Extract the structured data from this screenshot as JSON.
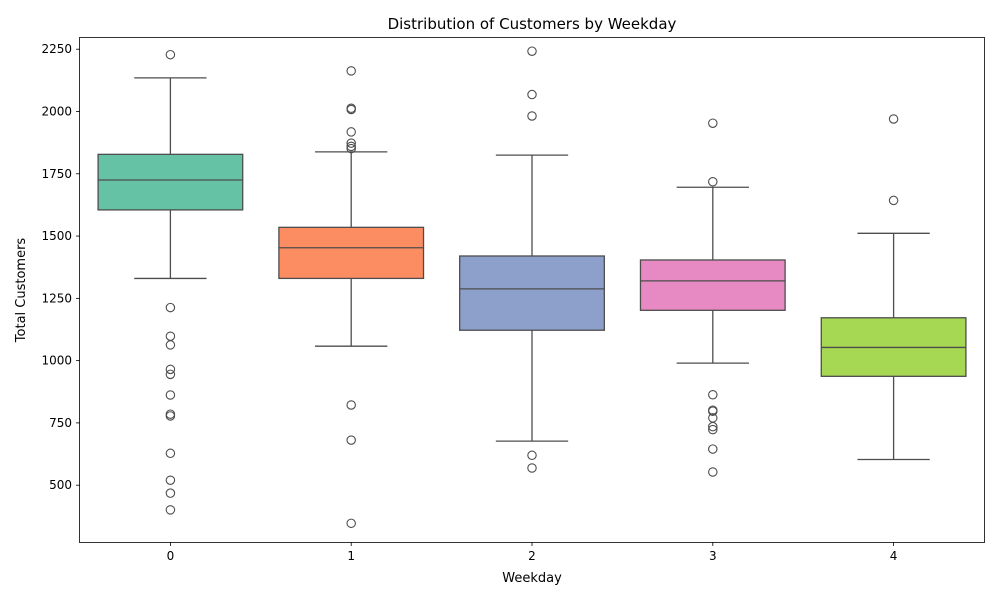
{
  "chart_data": {
    "type": "box",
    "title": "Distribution of Customers by Weekday",
    "xlabel": "Weekday",
    "ylabel": "Total Customers",
    "categories": [
      "0",
      "1",
      "2",
      "3",
      "4"
    ],
    "y_ticks": [
      500,
      750,
      1000,
      1250,
      1500,
      1750,
      2000,
      2250
    ],
    "ylim": [
      272,
      2295
    ],
    "grid": false,
    "boxes": [
      {
        "category": "0",
        "color": "#66c2a5",
        "whisker_low": 1330,
        "q1": 1605,
        "median": 1725,
        "q3": 1828,
        "whisker_high": 2135,
        "outliers": [
          2228,
          1213,
          1098,
          1063,
          965,
          945,
          862,
          785,
          778,
          628,
          520,
          468,
          401
        ]
      },
      {
        "category": "1",
        "color": "#fc8d62",
        "whisker_low": 1058,
        "q1": 1330,
        "median": 1453,
        "q3": 1535,
        "whisker_high": 1838,
        "outliers": [
          2163,
          2013,
          2008,
          1918,
          1873,
          1860,
          1851,
          822,
          681,
          347
        ]
      },
      {
        "category": "2",
        "color": "#8da0cb",
        "whisker_low": 677,
        "q1": 1122,
        "median": 1288,
        "q3": 1420,
        "whisker_high": 1825,
        "outliers": [
          2242,
          2068,
          1982,
          620,
          569
        ]
      },
      {
        "category": "3",
        "color": "#e78ac3",
        "whisker_low": 990,
        "q1": 1202,
        "median": 1320,
        "q3": 1404,
        "whisker_high": 1696,
        "outliers": [
          1953,
          1718,
          863,
          801,
          797,
          770,
          735,
          723,
          645,
          553
        ]
      },
      {
        "category": "4",
        "color": "#a6d854",
        "whisker_low": 603,
        "q1": 937,
        "median": 1053,
        "q3": 1172,
        "whisker_high": 1511,
        "outliers": [
          1970,
          1643
        ]
      }
    ]
  }
}
